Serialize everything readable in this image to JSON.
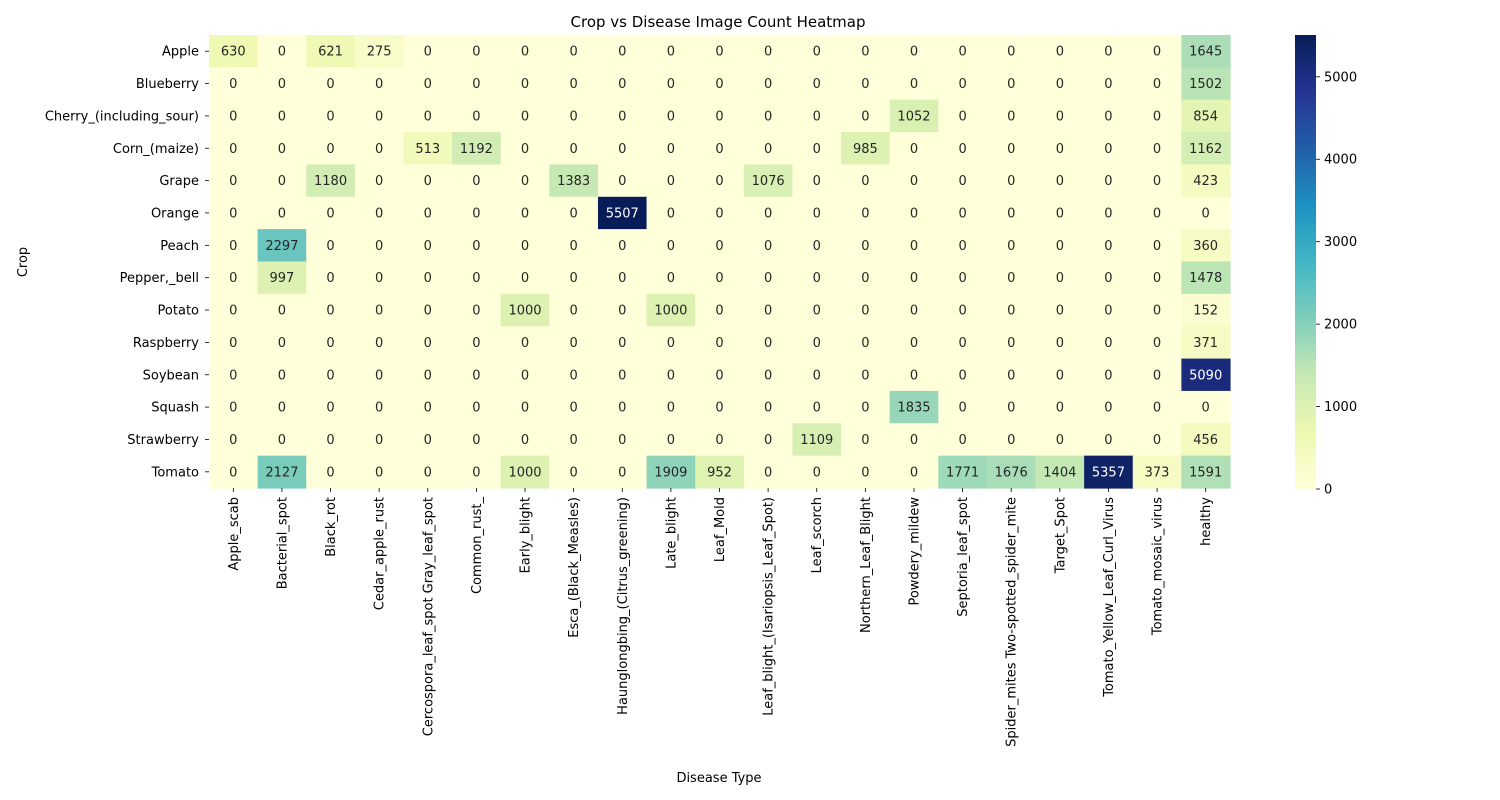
{
  "chart_data": {
    "type": "heatmap",
    "title": "Crop vs Disease Image Count Heatmap",
    "xlabel": "Disease Type",
    "ylabel": "Crop",
    "rows": [
      "Apple",
      "Blueberry",
      "Cherry_(including_sour)",
      "Corn_(maize)",
      "Grape",
      "Orange",
      "Peach",
      "Pepper,_bell",
      "Potato",
      "Raspberry",
      "Soybean",
      "Squash",
      "Strawberry",
      "Tomato"
    ],
    "columns": [
      "Apple_scab",
      "Bacterial_spot",
      "Black_rot",
      "Cedar_apple_rust",
      "Cercospora_leaf_spot Gray_leaf_spot",
      "Common_rust_",
      "Early_blight",
      "Esca_(Black_Measles)",
      "Haunglongbing_(Citrus_greening)",
      "Late_blight",
      "Leaf_Mold",
      "Leaf_blight_(Isariopsis_Leaf_Spot)",
      "Leaf_scorch",
      "Northern_Leaf_Blight",
      "Powdery_mildew",
      "Septoria_leaf_spot",
      "Spider_mites Two-spotted_spider_mite",
      "Target_Spot",
      "Tomato_Yellow_Leaf_Curl_Virus",
      "Tomato_mosaic_virus",
      "healthy"
    ],
    "values": [
      [
        630,
        0,
        621,
        275,
        0,
        0,
        0,
        0,
        0,
        0,
        0,
        0,
        0,
        0,
        0,
        0,
        0,
        0,
        0,
        0,
        1645
      ],
      [
        0,
        0,
        0,
        0,
        0,
        0,
        0,
        0,
        0,
        0,
        0,
        0,
        0,
        0,
        0,
        0,
        0,
        0,
        0,
        0,
        1502
      ],
      [
        0,
        0,
        0,
        0,
        0,
        0,
        0,
        0,
        0,
        0,
        0,
        0,
        0,
        0,
        1052,
        0,
        0,
        0,
        0,
        0,
        854
      ],
      [
        0,
        0,
        0,
        0,
        513,
        1192,
        0,
        0,
        0,
        0,
        0,
        0,
        0,
        985,
        0,
        0,
        0,
        0,
        0,
        0,
        1162
      ],
      [
        0,
        0,
        1180,
        0,
        0,
        0,
        0,
        1383,
        0,
        0,
        0,
        1076,
        0,
        0,
        0,
        0,
        0,
        0,
        0,
        0,
        423
      ],
      [
        0,
        0,
        0,
        0,
        0,
        0,
        0,
        0,
        5507,
        0,
        0,
        0,
        0,
        0,
        0,
        0,
        0,
        0,
        0,
        0,
        0
      ],
      [
        0,
        2297,
        0,
        0,
        0,
        0,
        0,
        0,
        0,
        0,
        0,
        0,
        0,
        0,
        0,
        0,
        0,
        0,
        0,
        0,
        360
      ],
      [
        0,
        997,
        0,
        0,
        0,
        0,
        0,
        0,
        0,
        0,
        0,
        0,
        0,
        0,
        0,
        0,
        0,
        0,
        0,
        0,
        1478
      ],
      [
        0,
        0,
        0,
        0,
        0,
        0,
        1000,
        0,
        0,
        1000,
        0,
        0,
        0,
        0,
        0,
        0,
        0,
        0,
        0,
        0,
        152
      ],
      [
        0,
        0,
        0,
        0,
        0,
        0,
        0,
        0,
        0,
        0,
        0,
        0,
        0,
        0,
        0,
        0,
        0,
        0,
        0,
        0,
        371
      ],
      [
        0,
        0,
        0,
        0,
        0,
        0,
        0,
        0,
        0,
        0,
        0,
        0,
        0,
        0,
        0,
        0,
        0,
        0,
        0,
        0,
        5090
      ],
      [
        0,
        0,
        0,
        0,
        0,
        0,
        0,
        0,
        0,
        0,
        0,
        0,
        0,
        0,
        1835,
        0,
        0,
        0,
        0,
        0,
        0
      ],
      [
        0,
        0,
        0,
        0,
        0,
        0,
        0,
        0,
        0,
        0,
        0,
        0,
        1109,
        0,
        0,
        0,
        0,
        0,
        0,
        0,
        456
      ],
      [
        0,
        2127,
        0,
        0,
        0,
        0,
        1000,
        0,
        0,
        1909,
        952,
        0,
        0,
        0,
        0,
        1771,
        1676,
        1404,
        5357,
        373,
        1591
      ]
    ],
    "colorbar": {
      "colormap": "YlGnBu",
      "range": [
        0,
        5507
      ],
      "ticks": [
        0,
        1000,
        2000,
        3000,
        4000,
        5000
      ]
    }
  }
}
